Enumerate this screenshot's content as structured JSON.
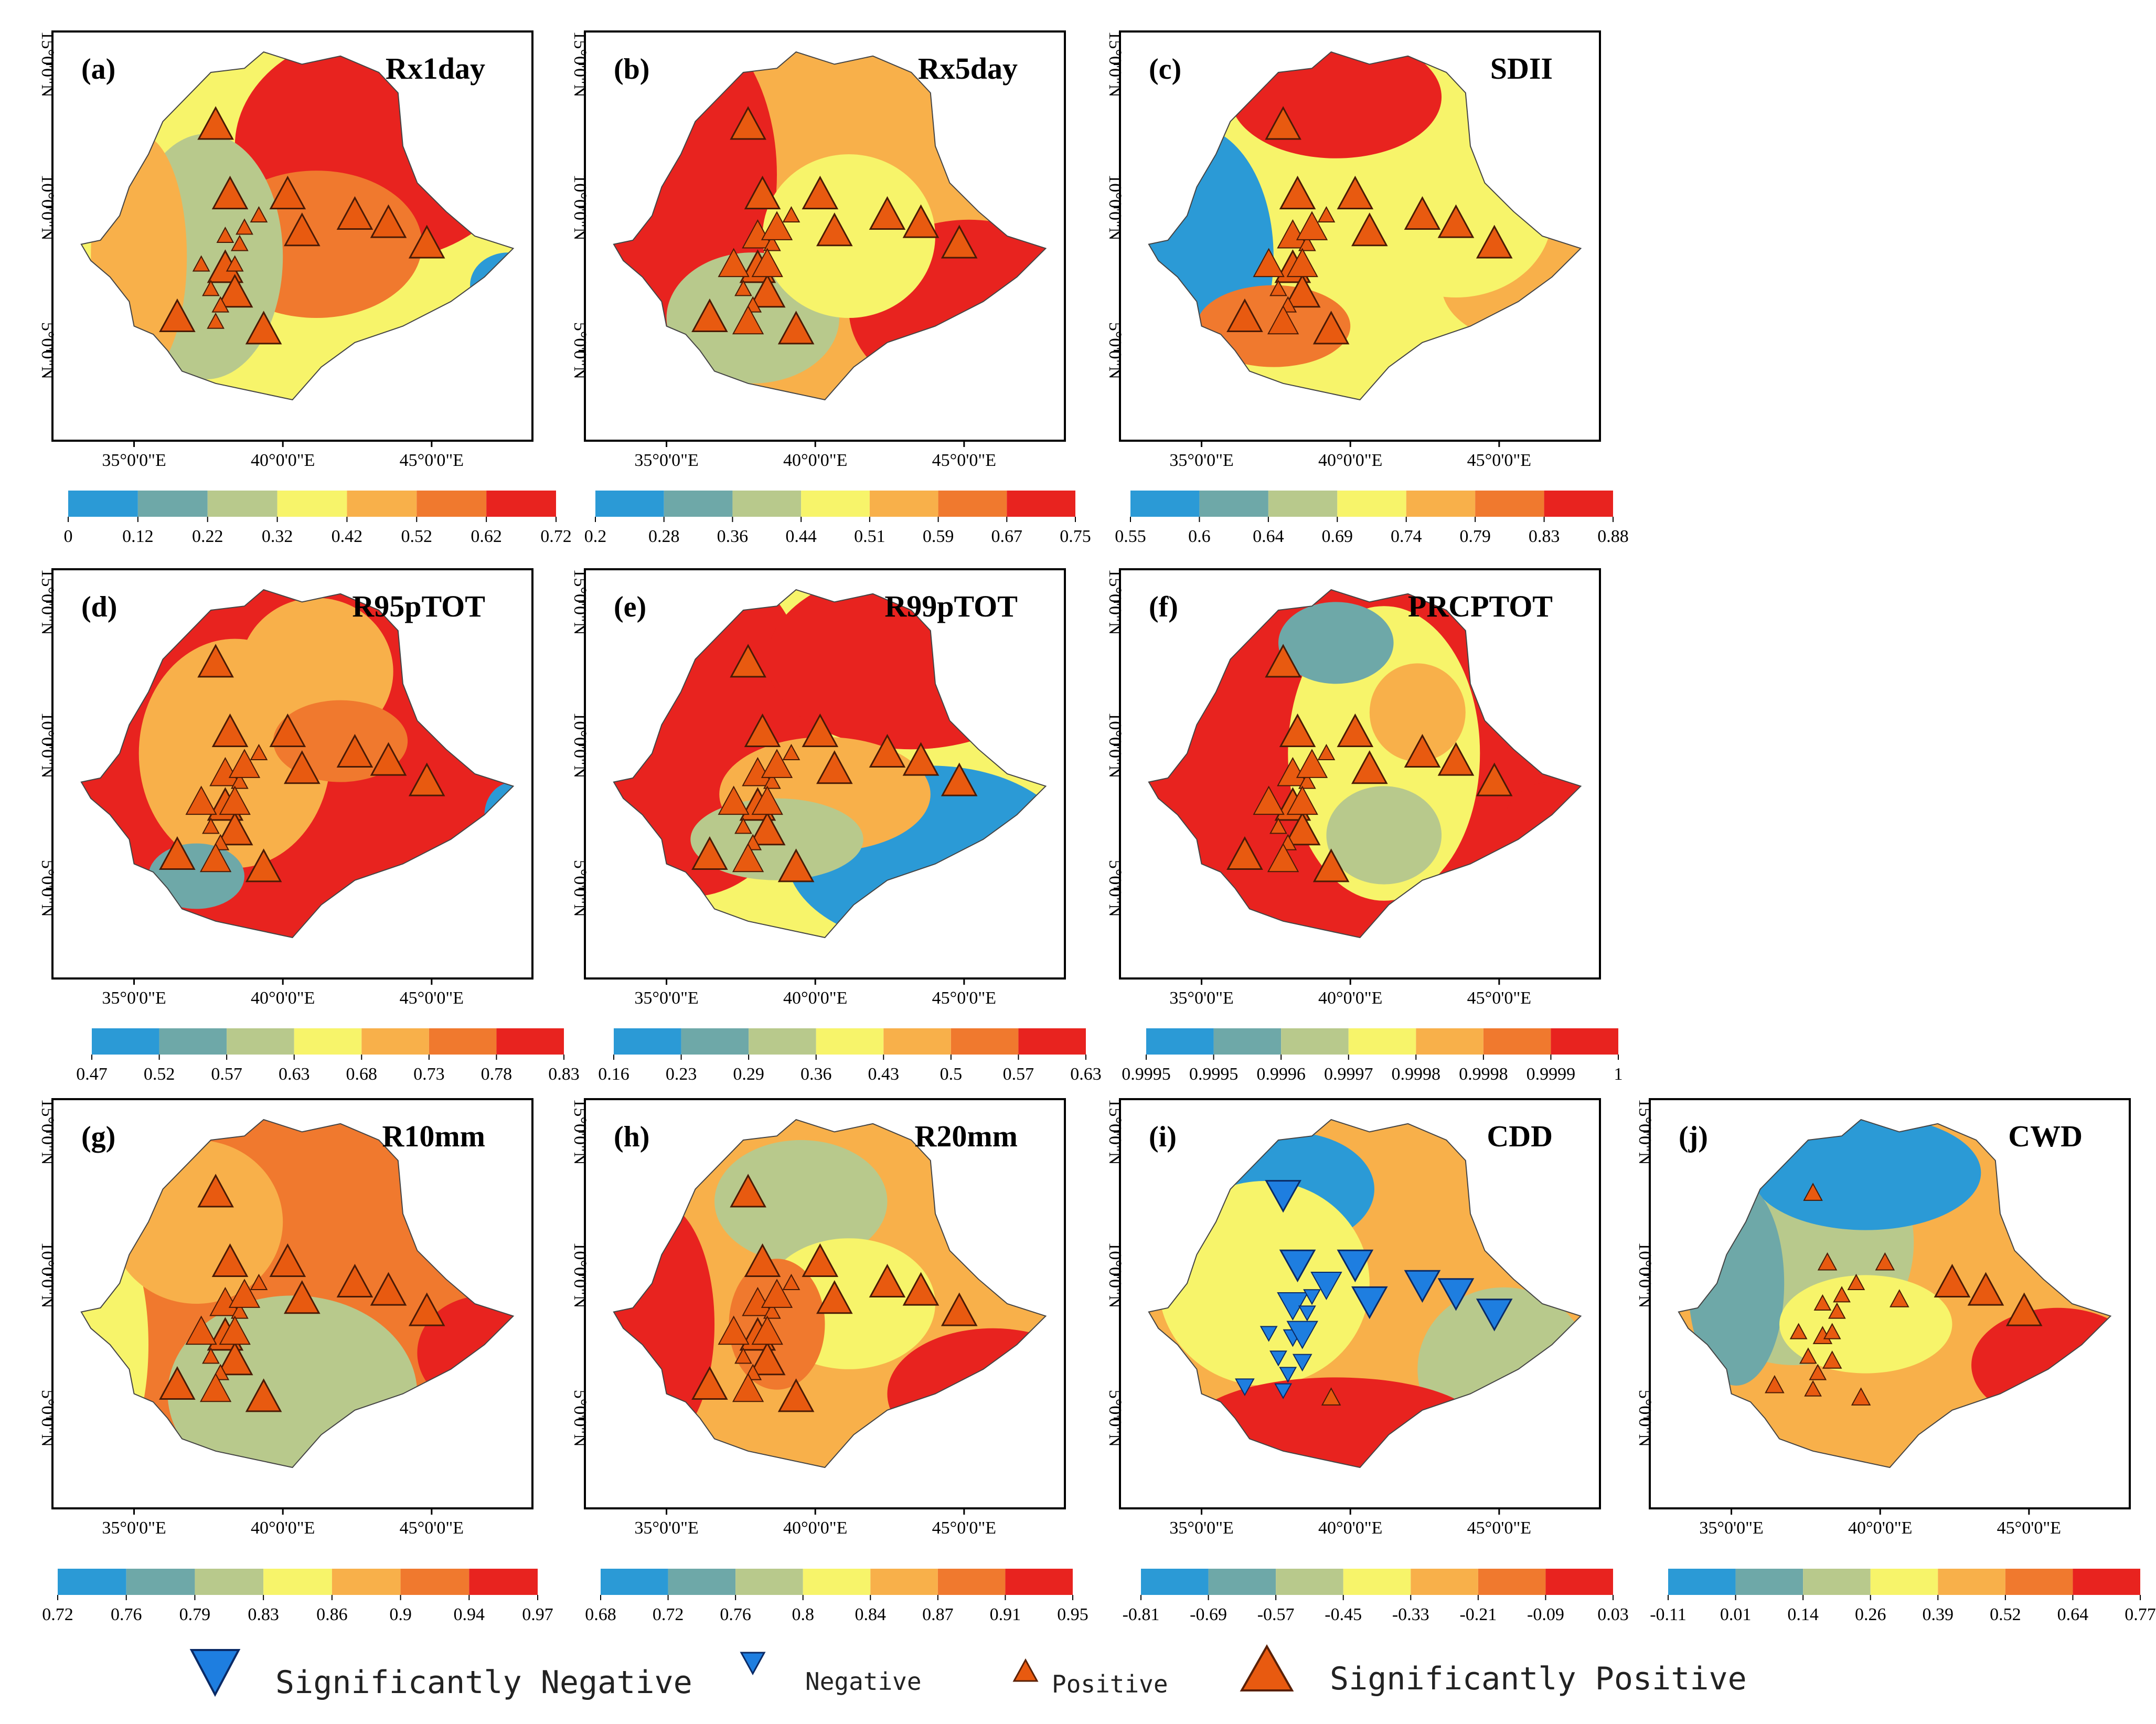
{
  "colors": {
    "ramp": [
      "#2b9ad6",
      "#6ea8a8",
      "#b8c98c",
      "#f7f46a",
      "#f8b04a",
      "#f0792e",
      "#e8231f"
    ],
    "marker_pos": "#e85a10",
    "marker_neg": "#1e7ee0"
  },
  "axes": {
    "x_ticks": [
      "35°0'0\"E",
      "40°0'0\"E",
      "45°0'0\"E"
    ],
    "y_ticks": [
      "15°0'0\"N",
      "10°0'0\"N",
      "5°0'0\"N"
    ]
  },
  "panels": [
    {
      "id": "a",
      "label": "(a)",
      "title": "Rx1day",
      "ticks": [
        "0",
        "0.12",
        "0.22",
        "0.32",
        "0.42",
        "0.52",
        "0.62",
        "0.72"
      ]
    },
    {
      "id": "b",
      "label": "(b)",
      "title": "Rx5day",
      "ticks": [
        "0.2",
        "0.28",
        "0.36",
        "0.44",
        "0.51",
        "0.59",
        "0.67",
        "0.75"
      ]
    },
    {
      "id": "c",
      "label": "(c)",
      "title": "SDII",
      "ticks": [
        "0.55",
        "0.6",
        "0.64",
        "0.69",
        "0.74",
        "0.79",
        "0.83",
        "0.88"
      ]
    },
    {
      "id": "d",
      "label": "(d)",
      "title": "R95pTOT",
      "ticks": [
        "0.47",
        "0.52",
        "0.57",
        "0.63",
        "0.68",
        "0.73",
        "0.78",
        "0.83"
      ]
    },
    {
      "id": "e",
      "label": "(e)",
      "title": "R99pTOT",
      "ticks": [
        "0.16",
        "0.23",
        "0.29",
        "0.36",
        "0.43",
        "0.5",
        "0.57",
        "0.63"
      ]
    },
    {
      "id": "f",
      "label": "(f)",
      "title": "PRCPTOT",
      "ticks": [
        "0.9995",
        "0.9995",
        "0.9996",
        "0.9997",
        "0.9998",
        "0.9998",
        "0.9999",
        "1"
      ]
    },
    {
      "id": "g",
      "label": "(g)",
      "title": "R10mm",
      "ticks": [
        "0.72",
        "0.76",
        "0.79",
        "0.83",
        "0.86",
        "0.9",
        "0.94",
        "0.97"
      ]
    },
    {
      "id": "h",
      "label": "(h)",
      "title": "R20mm",
      "ticks": [
        "0.68",
        "0.72",
        "0.76",
        "0.8",
        "0.84",
        "0.87",
        "0.91",
        "0.95"
      ]
    },
    {
      "id": "i",
      "label": "(i)",
      "title": "CDD",
      "ticks": [
        "-0.81",
        "-0.69",
        "-0.57",
        "-0.45",
        "-0.33",
        "-0.21",
        "-0.09",
        "0.03"
      ]
    },
    {
      "id": "j",
      "label": "(j)",
      "title": "CWD",
      "ticks": [
        "-0.11",
        "0.01",
        "0.14",
        "0.26",
        "0.39",
        "0.52",
        "0.64",
        "0.77"
      ]
    }
  ],
  "legend": {
    "sig_negative": "Significantly Negative",
    "negative": "Negative",
    "positive": "Positive",
    "sig_positive": "Significantly Positive"
  }
}
